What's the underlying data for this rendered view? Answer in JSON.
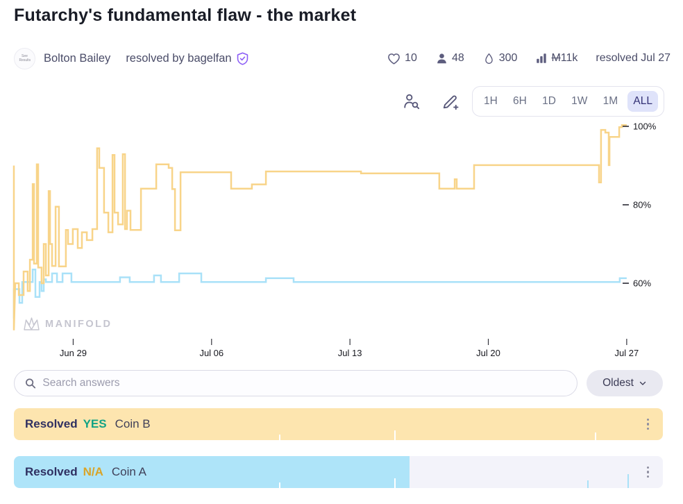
{
  "header": {
    "title": "Futarchy's fundamental flaw - the market",
    "avatar_text": "See Results",
    "creator": "Bolton Bailey",
    "resolved_by": "resolved by bagelfan"
  },
  "stats": {
    "likes": "10",
    "traders": "48",
    "liquidity": "300",
    "volume_currency": "M",
    "volume": "11k",
    "resolved_date": "resolved Jul 27"
  },
  "chart_controls": {
    "ranges": [
      "1H",
      "6H",
      "1D",
      "1W",
      "1M",
      "ALL"
    ],
    "active_range": "ALL"
  },
  "chart_data": {
    "type": "line",
    "step": true,
    "x_unit": "days since Jun 26",
    "x_ticks": [
      {
        "day": 3,
        "label": "Jun 29"
      },
      {
        "day": 10,
        "label": "Jul 06"
      },
      {
        "day": 17,
        "label": "Jul 13"
      },
      {
        "day": 24,
        "label": "Jul 20"
      },
      {
        "day": 31,
        "label": "Jul 27"
      }
    ],
    "y_ticks": [
      {
        "value": 100,
        "label": "100%"
      },
      {
        "value": 80,
        "label": "80%"
      },
      {
        "value": 60,
        "label": "60%"
      }
    ],
    "watermark": "MANIFOLD",
    "series": [
      {
        "name": "Coin B",
        "color": "#F8D489",
        "points": [
          [
            0,
            90
          ],
          [
            0,
            48
          ],
          [
            0.07,
            60
          ],
          [
            0.25,
            60
          ],
          [
            0.25,
            57
          ],
          [
            0.49,
            57
          ],
          [
            0.49,
            63
          ],
          [
            0.7,
            63
          ],
          [
            0.7,
            58
          ],
          [
            0.81,
            58
          ],
          [
            0.81,
            66
          ],
          [
            0.95,
            66
          ],
          [
            0.95,
            85.3
          ],
          [
            1.02,
            85.3
          ],
          [
            1.02,
            65
          ],
          [
            1.16,
            65
          ],
          [
            1.16,
            90.3
          ],
          [
            1.23,
            90.3
          ],
          [
            1.23,
            64
          ],
          [
            1.4,
            64
          ],
          [
            1.4,
            60
          ],
          [
            1.51,
            60
          ],
          [
            1.51,
            70
          ],
          [
            1.62,
            70
          ],
          [
            1.62,
            62
          ],
          [
            1.76,
            62
          ],
          [
            1.76,
            83.5
          ],
          [
            1.83,
            83.5
          ],
          [
            1.83,
            70
          ],
          [
            1.93,
            70
          ],
          [
            1.93,
            64.4
          ],
          [
            2.11,
            64.4
          ],
          [
            2.11,
            79.5
          ],
          [
            2.28,
            79.5
          ],
          [
            2.28,
            64.3
          ],
          [
            2.63,
            64.3
          ],
          [
            2.63,
            73.6
          ],
          [
            2.74,
            73.6
          ],
          [
            2.74,
            70
          ],
          [
            2.98,
            70
          ],
          [
            2.98,
            73.8
          ],
          [
            3.23,
            73.8
          ],
          [
            3.23,
            69
          ],
          [
            3.44,
            69
          ],
          [
            3.44,
            73
          ],
          [
            3.69,
            73
          ],
          [
            3.69,
            71
          ],
          [
            3.97,
            71
          ],
          [
            3.97,
            73.8
          ],
          [
            4.21,
            73.8
          ],
          [
            4.21,
            94.4
          ],
          [
            4.32,
            94.4
          ],
          [
            4.32,
            89.4
          ],
          [
            4.56,
            89.4
          ],
          [
            4.56,
            78
          ],
          [
            4.78,
            78
          ],
          [
            4.78,
            73
          ],
          [
            4.99,
            73
          ],
          [
            4.99,
            92.7
          ],
          [
            5.09,
            92.7
          ],
          [
            5.09,
            78
          ],
          [
            5.27,
            78
          ],
          [
            5.27,
            75
          ],
          [
            5.51,
            75
          ],
          [
            5.51,
            92.9
          ],
          [
            5.62,
            92.9
          ],
          [
            5.62,
            73.8
          ],
          [
            5.72,
            73.8
          ],
          [
            5.72,
            78.5
          ],
          [
            5.9,
            78.5
          ],
          [
            5.9,
            73.6
          ],
          [
            6.43,
            73.6
          ],
          [
            6.43,
            84.1
          ],
          [
            7.2,
            84.1
          ],
          [
            7.2,
            90.3
          ],
          [
            7.83,
            90.3
          ],
          [
            7.83,
            89.4
          ],
          [
            8.01,
            89.4
          ],
          [
            8.01,
            84
          ],
          [
            8.15,
            84
          ],
          [
            8.15,
            73.5
          ],
          [
            8.43,
            73.5
          ],
          [
            8.43,
            88.3
          ],
          [
            10.99,
            88.3
          ],
          [
            10.99,
            84.1
          ],
          [
            12.04,
            84.1
          ],
          [
            12.04,
            85.2
          ],
          [
            12.75,
            85.2
          ],
          [
            12.75,
            88.5
          ],
          [
            17.56,
            88.5
          ],
          [
            17.56,
            88
          ],
          [
            21.52,
            88
          ],
          [
            21.52,
            84.1
          ],
          [
            22.3,
            84.1
          ],
          [
            22.3,
            86.5
          ],
          [
            22.4,
            86.5
          ],
          [
            22.4,
            84.1
          ],
          [
            23.28,
            84.1
          ],
          [
            23.28,
            90.1
          ],
          [
            29.6,
            90.1
          ],
          [
            29.6,
            85.7
          ],
          [
            29.7,
            85.7
          ],
          [
            29.7,
            99.1
          ],
          [
            29.92,
            99.1
          ],
          [
            29.92,
            98.4
          ],
          [
            30.09,
            98.4
          ],
          [
            30.09,
            90.1
          ],
          [
            30.13,
            90.1
          ],
          [
            30.13,
            97.3
          ],
          [
            30.62,
            97.3
          ],
          [
            30.62,
            99.8
          ],
          [
            30.76,
            99.8
          ],
          [
            30.76,
            100.3
          ],
          [
            31,
            100.3
          ]
        ]
      },
      {
        "name": "Coin A",
        "color": "#A9E1F8",
        "points": [
          [
            0,
            51
          ],
          [
            0,
            58.5
          ],
          [
            0.28,
            58.5
          ],
          [
            0.28,
            55
          ],
          [
            0.42,
            55
          ],
          [
            0.42,
            60.3
          ],
          [
            0.95,
            60.3
          ],
          [
            0.95,
            63.5
          ],
          [
            1.09,
            63.5
          ],
          [
            1.09,
            56.5
          ],
          [
            1.3,
            56.5
          ],
          [
            1.3,
            60.3
          ],
          [
            1.4,
            60.3
          ],
          [
            1.4,
            58
          ],
          [
            1.51,
            58
          ],
          [
            1.51,
            61
          ],
          [
            1.62,
            61
          ],
          [
            1.62,
            60.3
          ],
          [
            1.93,
            60.3
          ],
          [
            1.93,
            62.5
          ],
          [
            2.18,
            62.5
          ],
          [
            2.18,
            60.3
          ],
          [
            2.46,
            60.3
          ],
          [
            2.46,
            62.5
          ],
          [
            2.91,
            62.5
          ],
          [
            2.91,
            60.3
          ],
          [
            5.37,
            60.3
          ],
          [
            5.37,
            61.5
          ],
          [
            5.86,
            61.5
          ],
          [
            5.86,
            60.3
          ],
          [
            7.09,
            60.3
          ],
          [
            7.09,
            62
          ],
          [
            7.44,
            62
          ],
          [
            7.44,
            60.3
          ],
          [
            8.36,
            60.3
          ],
          [
            8.36,
            62.5
          ],
          [
            9.48,
            62.5
          ],
          [
            9.48,
            60.3
          ],
          [
            12.75,
            60.3
          ],
          [
            12.75,
            61.3
          ],
          [
            14.15,
            61.3
          ],
          [
            14.15,
            60.3
          ],
          [
            30.65,
            60.3
          ],
          [
            30.65,
            61.3
          ],
          [
            31,
            61.3
          ]
        ]
      }
    ]
  },
  "search": {
    "placeholder": "Search answers",
    "sort_label": "Oldest"
  },
  "answers": [
    {
      "resolved_label": "Resolved",
      "outcome": "YES",
      "outcome_color": "#12A385",
      "name": "Coin B",
      "fill_pct": 100,
      "fill_color": "#FDE5AF",
      "ticks": [
        {
          "pos": 0.409,
          "h": 8,
          "color": "#FFFFFF"
        },
        {
          "pos": 0.586,
          "h": 14,
          "color": "#FFFFFF"
        },
        {
          "pos": 0.895,
          "h": 11,
          "color": "#FFFFFF"
        }
      ]
    },
    {
      "resolved_label": "Resolved",
      "outcome": "N/A",
      "outcome_color": "#D9A428",
      "name": "Coin A",
      "fill_pct": 61,
      "fill_color": "#AEE4F9",
      "ticks": [
        {
          "pos": 0.409,
          "h": 8,
          "color": "#FFFFFF"
        },
        {
          "pos": 0.586,
          "h": 14,
          "color": "#FFFFFF"
        },
        {
          "pos": 0.883,
          "h": 11,
          "color": "#A9E1F8"
        },
        {
          "pos": 0.945,
          "h": 20,
          "color": "#A9E1F8"
        }
      ]
    }
  ]
}
